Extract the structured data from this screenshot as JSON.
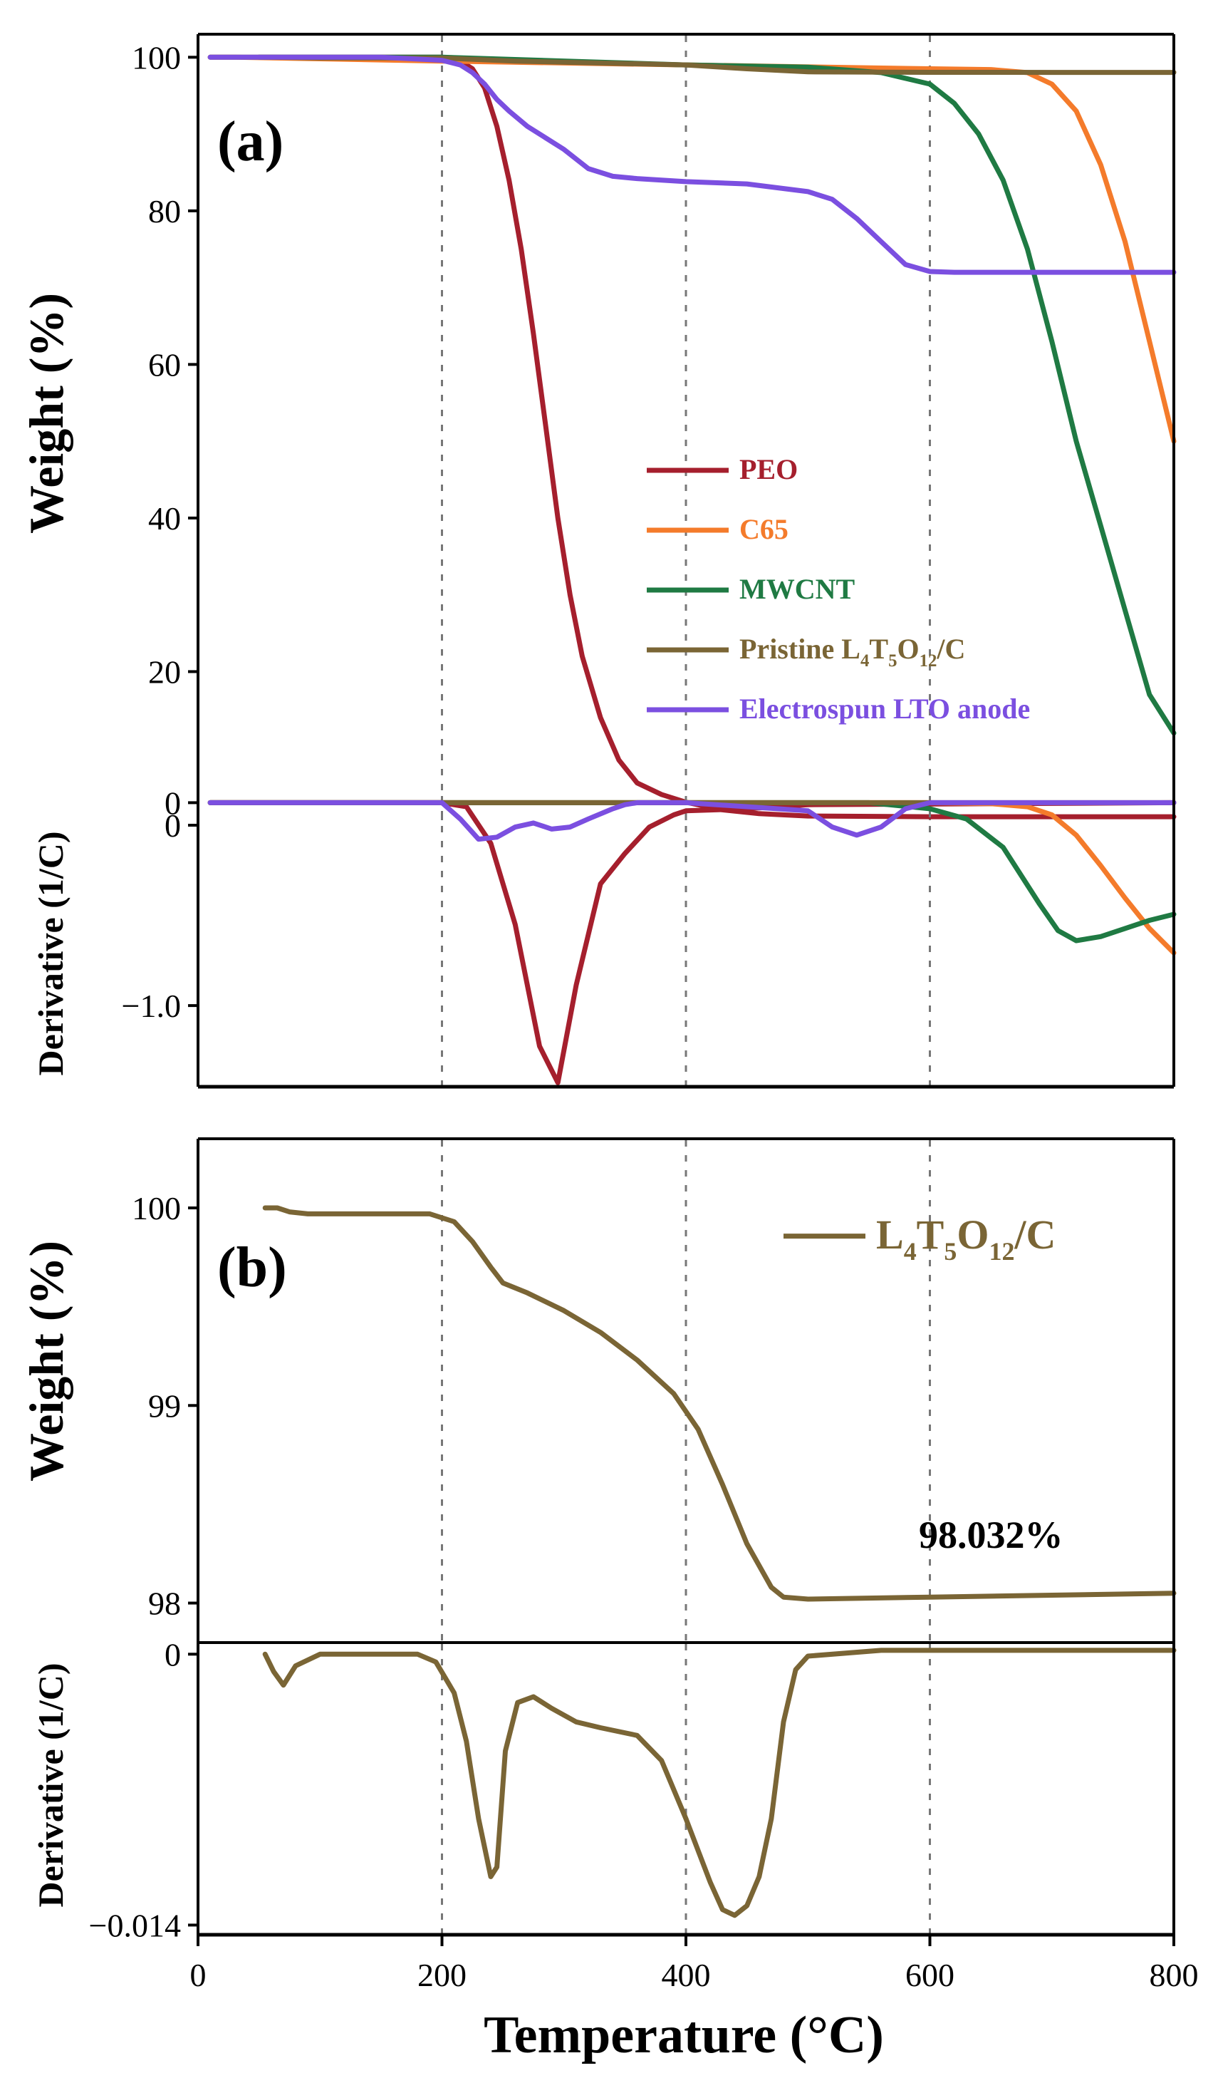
{
  "figure": {
    "xlabel": "Temperature (°C)",
    "x_ticks": [
      0,
      200,
      400,
      600,
      800
    ],
    "x_tick_labels": [
      "0",
      "200",
      "400",
      "600",
      "800"
    ]
  },
  "chart_data": [
    {
      "id": "a-weight",
      "type": "line",
      "panel_label": "(a)",
      "title": "",
      "ylabel": "Weight (%)",
      "xlim": [
        0,
        800
      ],
      "ylim": [
        0,
        103
      ],
      "y_ticks": [
        0,
        20,
        40,
        60,
        80,
        100
      ],
      "y_tick_labels": [
        "0",
        "20",
        "40",
        "60",
        "80",
        "100"
      ],
      "vlines": [
        200,
        400,
        600
      ],
      "legend_position": "center-right",
      "series": [
        {
          "name": "PEO",
          "color": "#a51f2d",
          "x": [
            50,
            150,
            200,
            215,
            225,
            235,
            245,
            255,
            265,
            275,
            285,
            295,
            305,
            315,
            330,
            345,
            360,
            380,
            400,
            430,
            460,
            500,
            600,
            700,
            800
          ],
          "y": [
            100,
            100,
            100,
            99.5,
            98.5,
            96,
            91,
            84,
            75,
            64,
            52,
            40,
            30,
            22,
            14,
            8.5,
            5.5,
            4,
            3,
            2,
            1.5,
            1.2,
            1.1,
            1.1,
            1.1
          ]
        },
        {
          "name": "C65",
          "color": "#f47b2b",
          "x": [
            10,
            30,
            200,
            400,
            600,
            650,
            680,
            700,
            720,
            740,
            760,
            780,
            800
          ],
          "y": [
            100,
            100,
            99.5,
            99,
            98.5,
            98.4,
            98,
            96.5,
            93,
            86,
            76,
            63,
            50
          ]
        },
        {
          "name": "MWCNT",
          "color": "#1f7a43",
          "x": [
            50,
            200,
            400,
            500,
            560,
            600,
            620,
            640,
            660,
            680,
            700,
            720,
            740,
            760,
            780,
            800
          ],
          "y": [
            100,
            100,
            99,
            98.7,
            98,
            96.5,
            94,
            90,
            84,
            75,
            63,
            50,
            39,
            28,
            17,
            12
          ]
        },
        {
          "name": "Pristine L4T5O12/C",
          "color": "#7a6535",
          "legend_main": "Pristine L",
          "legend_sub": [
            "4",
            "5",
            "12"
          ],
          "legend_mid": [
            "T",
            "O"
          ],
          "legend_end": "/C",
          "x": [
            10,
            60,
            100,
            200,
            260,
            400,
            450,
            500,
            600,
            700,
            800
          ],
          "y": [
            100,
            100,
            99.9,
            99.9,
            99.5,
            99,
            98.5,
            98.1,
            98.04,
            98.03,
            98.03
          ]
        },
        {
          "name": "Electrospun LTO anode",
          "color": "#7b4fe0",
          "x": [
            10,
            150,
            200,
            215,
            225,
            235,
            245,
            255,
            270,
            285,
            300,
            320,
            340,
            360,
            400,
            450,
            500,
            520,
            540,
            560,
            580,
            600,
            620,
            700,
            800
          ],
          "y": [
            100,
            100,
            99.6,
            99,
            98,
            96.5,
            94.5,
            93,
            91,
            89.5,
            88,
            85.5,
            84.5,
            84.2,
            83.8,
            83.5,
            82.5,
            81.5,
            79,
            76,
            73,
            72.1,
            72,
            72,
            72
          ]
        }
      ]
    },
    {
      "id": "a-derivative",
      "type": "line",
      "title": "",
      "ylabel": "Derivative (1/C)",
      "xlim": [
        0,
        800
      ],
      "ylim": [
        -1.4,
        0.04
      ],
      "y_ticks": [
        0,
        -1.0
      ],
      "y_tick_labels": [
        "0",
        "−1.0"
      ],
      "vlines": [
        200,
        400,
        600
      ],
      "series": [
        {
          "name": "PEO",
          "color": "#a51f2d",
          "x": [
            10,
            200,
            220,
            240,
            260,
            280,
            295,
            310,
            330,
            350,
            370,
            390,
            400,
            450,
            500,
            800
          ],
          "y": [
            0,
            0,
            -0.02,
            -0.2,
            -0.6,
            -1.2,
            -1.38,
            -0.9,
            -0.4,
            -0.25,
            -0.12,
            -0.06,
            -0.04,
            -0.03,
            -0.01,
            0
          ]
        },
        {
          "name": "C65",
          "color": "#f47b2b",
          "x": [
            10,
            600,
            650,
            680,
            700,
            720,
            740,
            760,
            780,
            800
          ],
          "y": [
            0,
            0,
            -0.005,
            -0.02,
            -0.06,
            -0.16,
            -0.31,
            -0.47,
            -0.62,
            -0.74
          ]
        },
        {
          "name": "MWCNT",
          "color": "#1f7a43",
          "x": [
            10,
            550,
            600,
            630,
            660,
            690,
            705,
            720,
            740,
            760,
            780,
            800
          ],
          "y": [
            0,
            0,
            -0.03,
            -0.08,
            -0.22,
            -0.5,
            -0.63,
            -0.68,
            -0.66,
            -0.62,
            -0.58,
            -0.55
          ]
        },
        {
          "name": "Pristine L4T5O12/C",
          "color": "#7a6535",
          "x": [
            10,
            800
          ],
          "y": [
            0,
            0
          ]
        },
        {
          "name": "Electrospun LTO anode",
          "color": "#7b4fe0",
          "x": [
            10,
            200,
            215,
            230,
            245,
            260,
            275,
            290,
            305,
            320,
            340,
            350,
            360,
            400,
            500,
            520,
            540,
            560,
            580,
            600,
            800
          ],
          "y": [
            0,
            0,
            -0.08,
            -0.18,
            -0.17,
            -0.12,
            -0.1,
            -0.13,
            -0.12,
            -0.08,
            -0.03,
            -0.01,
            0,
            0,
            -0.04,
            -0.12,
            -0.16,
            -0.12,
            -0.03,
            0,
            0
          ]
        }
      ]
    },
    {
      "id": "b-weight",
      "type": "line",
      "panel_label": "(b)",
      "title": "",
      "ylabel": "Weight (%)",
      "xlim": [
        0,
        800
      ],
      "ylim": [
        97.8,
        100.35
      ],
      "y_ticks": [
        98,
        99,
        100
      ],
      "y_tick_labels": [
        "98",
        "99",
        "100"
      ],
      "vlines": [
        200,
        400,
        600
      ],
      "annotation": "98.032%",
      "legend_position": "top-right",
      "series": [
        {
          "name": "L4T5O12/C",
          "color": "#7a6535",
          "legend_main": "L",
          "legend_sub": [
            "4",
            "5",
            "12"
          ],
          "legend_mid": [
            "T",
            "O"
          ],
          "legend_end": "/C",
          "x": [
            55,
            65,
            75,
            90,
            120,
            190,
            210,
            225,
            240,
            250,
            270,
            300,
            330,
            360,
            390,
            410,
            430,
            450,
            470,
            480,
            500,
            600,
            700,
            800
          ],
          "y": [
            100,
            100,
            99.98,
            99.97,
            99.97,
            99.97,
            99.93,
            99.83,
            99.7,
            99.62,
            99.57,
            99.48,
            99.37,
            99.23,
            99.06,
            98.88,
            98.6,
            98.3,
            98.08,
            98.03,
            98.02,
            98.03,
            98.04,
            98.05
          ]
        }
      ]
    },
    {
      "id": "b-derivative",
      "type": "line",
      "title": "",
      "ylabel": "Derivative (1/C)",
      "xlim": [
        0,
        800
      ],
      "ylim": [
        -0.0145,
        0.0006
      ],
      "y_ticks": [
        0,
        -0.014
      ],
      "y_tick_labels": [
        "0",
        "−0.014"
      ],
      "vlines": [
        200,
        400,
        600
      ],
      "series": [
        {
          "name": "L4T5O12/C",
          "color": "#7a6535",
          "x": [
            55,
            62,
            70,
            80,
            100,
            180,
            195,
            210,
            220,
            230,
            240,
            245,
            252,
            262,
            275,
            290,
            310,
            330,
            360,
            380,
            400,
            420,
            430,
            440,
            450,
            460,
            470,
            480,
            490,
            500,
            560,
            800
          ],
          "y": [
            0,
            -0.0009,
            -0.0016,
            -0.0006,
            0,
            0,
            -0.0004,
            -0.002,
            -0.0045,
            -0.0085,
            -0.0115,
            -0.011,
            -0.005,
            -0.0025,
            -0.0022,
            -0.0028,
            -0.0035,
            -0.0038,
            -0.0042,
            -0.0055,
            -0.0085,
            -0.0118,
            -0.0132,
            -0.0135,
            -0.013,
            -0.0115,
            -0.0085,
            -0.0035,
            -0.0008,
            -0.0001,
            0.0002,
            0.0002
          ]
        }
      ]
    }
  ]
}
